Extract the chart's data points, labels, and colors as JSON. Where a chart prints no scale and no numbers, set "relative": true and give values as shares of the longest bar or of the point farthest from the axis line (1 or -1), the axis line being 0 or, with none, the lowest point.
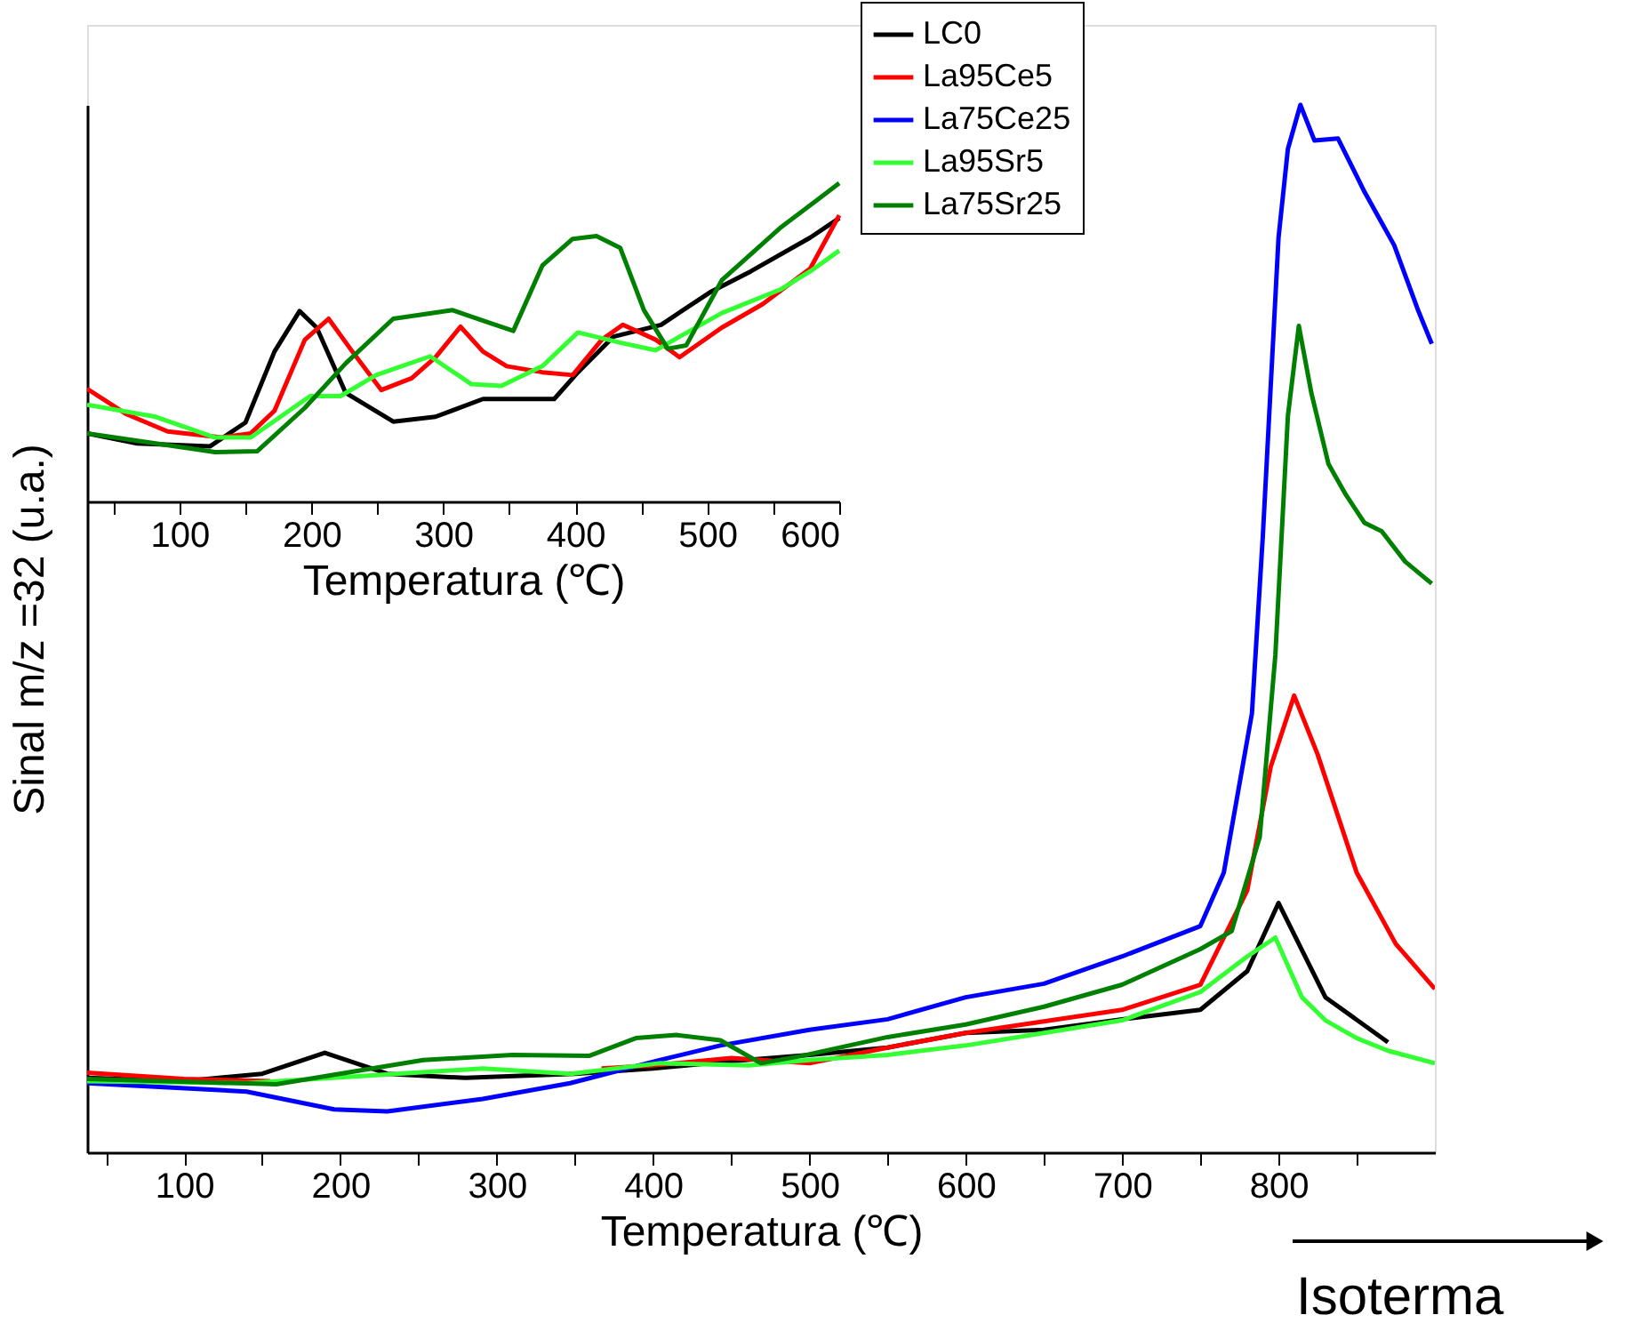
{
  "chart_data": [
    {
      "type": "line",
      "xlabel": "Temperatura (℃)",
      "ylabel": "Sinal m/z =32 (u.a.)",
      "relative": true,
      "xlim": [
        38,
        900
      ],
      "xticks": [
        {
          "value": 50,
          "label": null
        },
        100,
        {
          "value": 150,
          "label": null
        },
        200,
        {
          "value": 250,
          "label": null
        },
        300,
        {
          "value": 350,
          "label": null
        },
        400,
        {
          "value": 450,
          "label": null
        },
        500,
        {
          "value": 550,
          "label": null
        },
        600,
        {
          "value": 650,
          "label": null
        },
        700,
        {
          "value": 750,
          "label": null
        },
        800,
        {
          "value": 850,
          "label": null
        }
      ],
      "legend": "top right",
      "grid": false,
      "annotations": [
        "Isoterma"
      ],
      "series": [
        {
          "name": "LC0",
          "color": "#000000",
          "x": [
            38,
            100,
            150,
            190,
            230,
            280,
            350,
            400,
            450,
            500,
            550,
            600,
            650,
            700,
            750,
            780,
            800,
            830,
            870
          ],
          "values": [
            0.071,
            0.068,
            0.075,
            0.095,
            0.075,
            0.071,
            0.075,
            0.08,
            0.087,
            0.093,
            0.1,
            0.114,
            0.117,
            0.127,
            0.136,
            0.173,
            0.238,
            0.148,
            0.105
          ]
        },
        {
          "name": "La95Ce5",
          "color": "#ff0000",
          "x": [
            38,
            100,
            155,
            250,
            367,
            400,
            450,
            500,
            550,
            600,
            700,
            750,
            780,
            795,
            810,
            825,
            850,
            875,
            900
          ],
          "values": [
            0.076,
            0.07,
            0.068,
            null,
            0.08,
            0.083,
            0.09,
            0.085,
            0.1,
            0.114,
            0.136,
            0.16,
            0.25,
            0.368,
            0.436,
            0.38,
            0.267,
            0.199,
            0.156
          ]
        },
        {
          "name": "La75Ce25",
          "color": "#0000ff",
          "x": [
            38,
            140,
            196,
            230,
            291,
            347,
            404,
            443,
            500,
            550,
            600,
            650,
            700,
            750,
            765,
            783,
            790,
            800,
            806,
            814,
            823,
            838,
            855,
            874,
            889,
            898
          ],
          "values": [
            0.066,
            0.058,
            0.041,
            0.039,
            0.051,
            0.066,
            0.088,
            0.102,
            0.117,
            0.127,
            0.148,
            0.161,
            0.187,
            0.216,
            0.267,
            0.419,
            0.589,
            0.873,
            0.958,
            1.0,
            0.966,
            0.968,
            0.917,
            0.866,
            0.805,
            0.772
          ]
        },
        {
          "name": "La95Sr5",
          "color": "#33ff33",
          "x": [
            38,
            140,
            216,
            291,
            347,
            404,
            461,
            500,
            550,
            600,
            650,
            700,
            750,
            780,
            798,
            815,
            830,
            850,
            870,
            900
          ],
          "values": [
            0.068,
            0.066,
            0.073,
            0.08,
            0.075,
            0.085,
            0.083,
            0.088,
            0.093,
            0.102,
            0.114,
            0.126,
            0.153,
            0.187,
            0.205,
            0.148,
            0.126,
            0.109,
            0.097,
            0.085
          ]
        },
        {
          "name": "La75Sr25",
          "color": "#008000",
          "x": [
            38,
            159,
            253,
            310,
            359,
            389,
            415,
            443,
            469,
            495,
            550,
            600,
            650,
            700,
            750,
            770,
            788,
            798,
            806,
            813,
            821,
            832,
            843,
            855,
            866,
            881,
            898
          ],
          "values": [
            0.07,
            0.065,
            0.088,
            0.093,
            0.092,
            0.109,
            0.112,
            0.107,
            0.085,
            0.092,
            0.11,
            0.122,
            0.139,
            0.16,
            0.194,
            0.211,
            0.301,
            0.475,
            0.703,
            0.789,
            0.725,
            0.657,
            0.628,
            0.601,
            0.593,
            0.564,
            0.543
          ]
        }
      ]
    },
    {
      "type": "line",
      "xlabel": "Temperatura (℃)",
      "relative": true,
      "xlim": [
        30,
        600
      ],
      "xticks": [
        {
          "value": 50,
          "label": null
        },
        100,
        {
          "value": 150,
          "label": null
        },
        200,
        {
          "value": 250,
          "label": null
        },
        300,
        {
          "value": 350,
          "label": null
        },
        400,
        {
          "value": 450,
          "label": null
        },
        500,
        {
          "value": 550,
          "label": null
        },
        600
      ],
      "grid": false,
      "series": [
        {
          "color": "#000000",
          "x": [
            30,
            68,
            123,
            150,
            172,
            191,
            204,
            226,
            262,
            294,
            330,
            366,
            384,
            402,
            429,
            465,
            502,
            533,
            578,
            600
          ],
          "values": [
            0.214,
            0.182,
            0.173,
            0.248,
            0.471,
            0.598,
            0.546,
            0.341,
            0.251,
            0.266,
            0.322,
            0.322,
            0.322,
            0.406,
            0.518,
            0.555,
            0.657,
            0.723,
            0.829,
            0.89
          ]
        },
        {
          "color": "#ff0000",
          "x": [
            30,
            59,
            91,
            132,
            154,
            172,
            195,
            213,
            231,
            253,
            276,
            294,
            313,
            330,
            348,
            375,
            398,
            420,
            436,
            461,
            479,
            511,
            542,
            578,
            600
          ],
          "values": [
            0.354,
            0.276,
            0.22,
            0.201,
            0.214,
            0.285,
            0.508,
            0.574,
            0.471,
            0.35,
            0.387,
            0.453,
            0.549,
            0.471,
            0.425,
            0.406,
            0.397,
            0.508,
            0.555,
            0.508,
            0.453,
            0.546,
            0.62,
            0.732,
            0.899
          ]
        },
        {
          "color": "#33ff33",
          "x": [
            30,
            82,
            127,
            154,
            199,
            222,
            249,
            290,
            321,
            344,
            375,
            402,
            434,
            461,
            479,
            511,
            556,
            578,
            600
          ],
          "values": [
            0.304,
            0.266,
            0.201,
            0.201,
            0.331,
            0.331,
            0.397,
            0.456,
            0.369,
            0.363,
            0.425,
            0.531,
            0.499,
            0.475,
            0.518,
            0.592,
            0.667,
            0.723,
            0.788
          ]
        },
        {
          "color": "#008000",
          "x": [
            30,
            82,
            127,
            159,
            195,
            226,
            262,
            307,
            330,
            353,
            375,
            398,
            416,
            434,
            452,
            470,
            484,
            511,
            556,
            583,
            600
          ],
          "values": [
            0.214,
            0.182,
            0.155,
            0.158,
            0.294,
            0.434,
            0.574,
            0.601,
            0.568,
            0.536,
            0.741,
            0.825,
            0.834,
            0.797,
            0.601,
            0.48,
            0.49,
            0.695,
            0.862,
            0.946,
            1.0
          ]
        }
      ]
    }
  ]
}
